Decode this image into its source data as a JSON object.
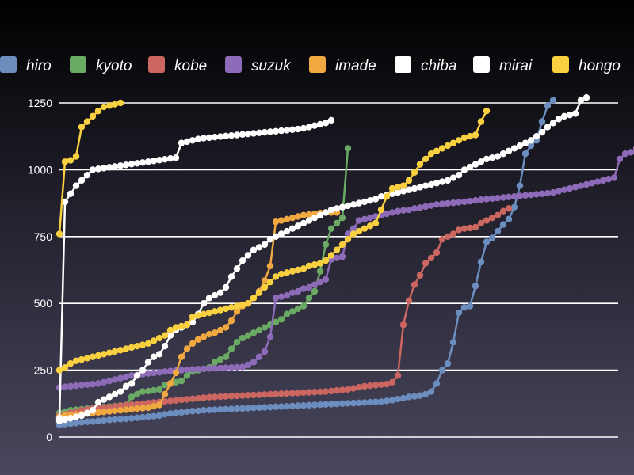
{
  "chart_data": {
    "type": "line",
    "title": "",
    "xlabel": "",
    "ylabel": "",
    "ylim": [
      0,
      1250
    ],
    "yticks": [
      0,
      250,
      500,
      750,
      1000,
      1250
    ],
    "grid": true,
    "legend_position": "top",
    "series": [
      {
        "name": "hiro",
        "color": "#6c8ebf",
        "values": [
          45,
          48,
          50,
          52,
          55,
          57,
          58,
          60,
          62,
          64,
          66,
          67,
          68,
          70,
          72,
          74,
          76,
          78,
          80,
          85,
          88,
          90,
          92,
          95,
          97,
          98,
          100,
          101,
          102,
          103,
          104,
          105,
          106,
          107,
          108,
          109,
          110,
          111,
          112,
          113,
          114,
          115,
          116,
          117,
          118,
          119,
          120,
          121,
          122,
          123,
          124,
          125,
          126,
          127,
          128,
          129,
          130,
          131,
          132,
          135,
          138,
          142,
          145,
          150,
          152,
          155,
          160,
          170,
          200,
          250,
          275,
          355,
          465,
          485,
          490,
          565,
          655,
          730,
          745,
          770,
          795,
          815,
          860,
          940,
          1060,
          1090,
          1110,
          1180,
          1240,
          1260
        ]
      },
      {
        "name": "kyoto",
        "color": "#6aaa64",
        "values": [
          90,
          95,
          100,
          102,
          104,
          106,
          108,
          110,
          112,
          114,
          116,
          118,
          120,
          150,
          160,
          170,
          172,
          175,
          178,
          195,
          200,
          205,
          210,
          230,
          245,
          250,
          255,
          260,
          280,
          290,
          300,
          330,
          355,
          370,
          380,
          390,
          400,
          410,
          420,
          430,
          440,
          460,
          470,
          480,
          490,
          520,
          545,
          620,
          720,
          780,
          800,
          820,
          1080
        ]
      },
      {
        "name": "kobe",
        "color": "#cc6661",
        "values": [
          80,
          85,
          90,
          95,
          100,
          103,
          106,
          108,
          110,
          112,
          115,
          117,
          119,
          121,
          123,
          125,
          127,
          129,
          131,
          133,
          135,
          137,
          139,
          141,
          143,
          145,
          147,
          149,
          150,
          151,
          152,
          153,
          154,
          155,
          156,
          157,
          158,
          159,
          160,
          161,
          162,
          163,
          164,
          165,
          166,
          167,
          168,
          169,
          170,
          172,
          174,
          176,
          178,
          182,
          186,
          190,
          192,
          194,
          196,
          198,
          205,
          230,
          420,
          510,
          570,
          605,
          650,
          670,
          690,
          740,
          750,
          760,
          775,
          780,
          782,
          785,
          800,
          810,
          820,
          830,
          845,
          855
        ]
      },
      {
        "name": "suzuk",
        "color": "#8e6bb8",
        "values": [
          185,
          188,
          190,
          192,
          194,
          196,
          198,
          200,
          205,
          210,
          215,
          220,
          225,
          230,
          232,
          235,
          238,
          240,
          242,
          245,
          247,
          249,
          250,
          252,
          253,
          254,
          255,
          256,
          257,
          258,
          259,
          260,
          261,
          262,
          270,
          280,
          300,
          320,
          375,
          520,
          525,
          530,
          540,
          545,
          555,
          560,
          570,
          580,
          590,
          665,
          670,
          675,
          760,
          780,
          810,
          815,
          820,
          825,
          830,
          835,
          840,
          845,
          848,
          850,
          855,
          858,
          862,
          866,
          870,
          872,
          874,
          876,
          878,
          880,
          882,
          885,
          888,
          890,
          892,
          894,
          896,
          898,
          900,
          902,
          904,
          906,
          908,
          910,
          912,
          915,
          920,
          925,
          930,
          935,
          940,
          945,
          950,
          955,
          960,
          965,
          970,
          1040,
          1060,
          1065,
          1080,
          1135,
          1145
        ]
      },
      {
        "name": "imade",
        "color": "#f0a841",
        "values": [
          75,
          80,
          82,
          84,
          86,
          88,
          90,
          92,
          94,
          96,
          98,
          100,
          102,
          104,
          106,
          108,
          110,
          115,
          120,
          160,
          200,
          240,
          300,
          330,
          350,
          365,
          375,
          385,
          390,
          400,
          410,
          435,
          470,
          490,
          500,
          520,
          545,
          585,
          640,
          805,
          810,
          815,
          820,
          825,
          830,
          832,
          835,
          838,
          840,
          840,
          840
        ]
      },
      {
        "name": "chiba",
        "color": "#ffffff",
        "values": [
          60,
          65,
          70,
          75,
          80,
          90,
          100,
          130,
          140,
          150,
          160,
          170,
          190,
          200,
          230,
          250,
          280,
          300,
          310,
          340,
          380,
          400,
          410,
          420,
          430,
          460,
          500,
          520,
          530,
          540,
          560,
          600,
          630,
          660,
          680,
          700,
          710,
          720,
          740,
          750,
          760,
          770,
          780,
          790,
          800,
          810,
          820,
          830,
          840,
          850,
          855,
          860,
          865,
          870,
          875,
          880,
          885,
          890,
          900,
          905,
          910,
          915,
          920,
          925,
          930,
          935,
          940,
          945,
          950,
          955,
          960,
          970,
          980,
          1000,
          1010,
          1020,
          1030,
          1040,
          1045,
          1050,
          1060,
          1070,
          1080,
          1090,
          1100,
          1110,
          1125,
          1140,
          1160,
          1175,
          1190,
          1200,
          1205,
          1210,
          1260,
          1270
        ]
      },
      {
        "name": "mirai",
        "color": "#ffffff",
        "values": [
          70,
          880,
          910,
          940,
          960,
          980,
          1000,
          1003,
          1006,
          1009,
          1012,
          1015,
          1018,
          1021,
          1024,
          1027,
          1030,
          1033,
          1036,
          1039,
          1042,
          1045,
          1100,
          1105,
          1110,
          1115,
          1118,
          1120,
          1122,
          1124,
          1126,
          1128,
          1130,
          1132,
          1134,
          1136,
          1138,
          1140,
          1142,
          1144,
          1146,
          1148,
          1150,
          1152,
          1155,
          1160,
          1165,
          1170,
          1175,
          1185
        ]
      },
      {
        "name": "hongo",
        "color": "#f9d03f",
        "values": [
          250,
          260,
          275,
          285,
          290,
          295,
          300,
          305,
          310,
          315,
          320,
          325,
          330,
          335,
          340,
          345,
          350,
          360,
          370,
          380,
          400,
          410,
          415,
          420,
          450,
          455,
          460,
          465,
          470,
          475,
          480,
          485,
          490,
          495,
          500,
          520,
          540,
          560,
          580,
          600,
          610,
          615,
          620,
          625,
          630,
          640,
          645,
          650,
          660,
          680,
          700,
          720,
          740,
          760,
          770,
          780,
          790,
          800,
          850,
          900,
          930,
          935,
          940,
          960,
          990,
          1020,
          1040,
          1060,
          1070,
          1080,
          1090,
          1100,
          1110,
          1120,
          1125,
          1130,
          1180,
          1220
        ]
      },
      {
        "name": "hongo",
        "color": "#f9d03f",
        "values": [
          760,
          1030,
          1035,
          1050,
          1160,
          1180,
          1200,
          1220,
          1235,
          1240,
          1245,
          1250
        ]
      }
    ]
  }
}
